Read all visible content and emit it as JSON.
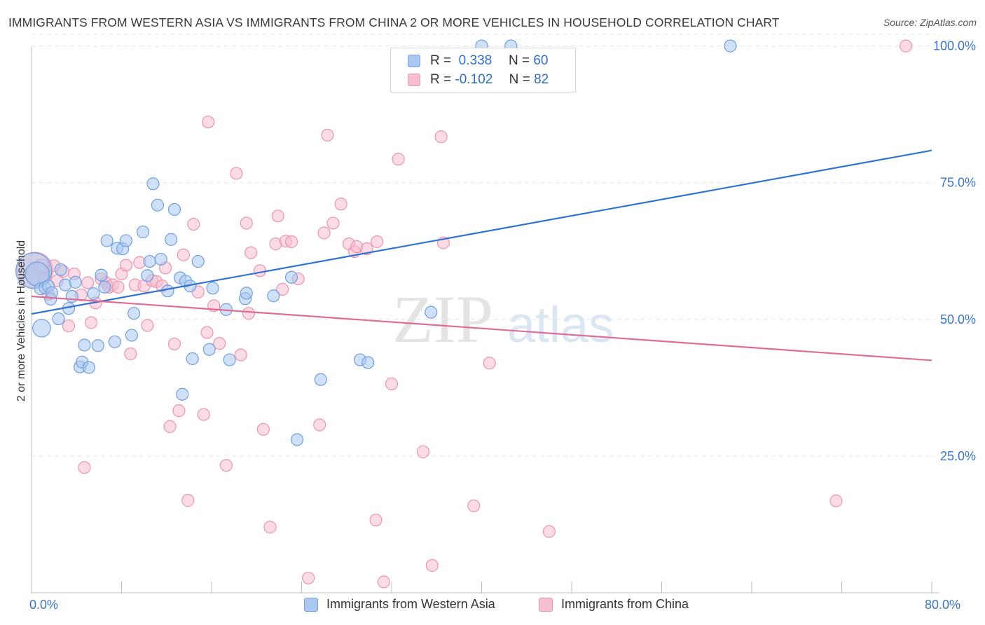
{
  "title": "IMMIGRANTS FROM WESTERN ASIA VS IMMIGRANTS FROM CHINA 2 OR MORE VEHICLES IN HOUSEHOLD CORRELATION CHART",
  "source": "Source: ZipAtlas.com",
  "watermark": {
    "zip": "ZIP",
    "atlas": "atlas"
  },
  "legend": {
    "r_label": "R =",
    "n_label": "N =",
    "series1": {
      "r": "0.338",
      "n": "60"
    },
    "series2": {
      "r": "-0.102",
      "n": "82"
    }
  },
  "colors": {
    "blue_fill": "#a9c7ef",
    "blue_stroke": "#6f9fe0",
    "blue_line": "#2f72d0",
    "pink_fill": "#f7bdd0",
    "pink_stroke": "#ea94b2",
    "pink_line": "#e06b96",
    "tick_text": "#3a74c9",
    "grid": "#e3e3e3"
  },
  "chart_data": {
    "type": "scatter",
    "title": "IMMIGRANTS FROM WESTERN ASIA VS IMMIGRANTS FROM CHINA 2 OR MORE VEHICLES IN HOUSEHOLD CORRELATION CHART",
    "xlabel": "",
    "ylabel": "2 or more Vehicles in Household",
    "xlim": [
      0,
      80
    ],
    "ylim": [
      0,
      102
    ],
    "x_tick_labels": [
      "0.0%",
      "80.0%"
    ],
    "y_ticks": [
      25,
      50,
      75,
      100
    ],
    "y_tick_labels": [
      "25.0%",
      "50.0%",
      "75.0%",
      "100.0%"
    ],
    "grid": true,
    "legend_position": "top-center",
    "series": [
      {
        "name": "Immigrants from Western Asia",
        "r": 0.338,
        "n": 60,
        "trend": {
          "x": [
            0,
            80
          ],
          "y": [
            51.0,
            80.9
          ]
        },
        "points": [
          {
            "x": 0.2,
            "y": 58.9,
            "s": 3
          },
          {
            "x": 0.5,
            "y": 58.3,
            "s": 2
          },
          {
            "x": 0.8,
            "y": 55.6,
            "s": 1
          },
          {
            "x": 1.2,
            "y": 55.8,
            "s": 1
          },
          {
            "x": 0.9,
            "y": 48.4,
            "s": 1.5
          },
          {
            "x": 1.5,
            "y": 56.1,
            "s": 1
          },
          {
            "x": 1.7,
            "y": 53.7,
            "s": 1
          },
          {
            "x": 1.8,
            "y": 54.9,
            "s": 1
          },
          {
            "x": 2.4,
            "y": 50.1,
            "s": 1
          },
          {
            "x": 2.6,
            "y": 59.1,
            "s": 1
          },
          {
            "x": 3.0,
            "y": 56.3,
            "s": 1
          },
          {
            "x": 3.3,
            "y": 52.0,
            "s": 1
          },
          {
            "x": 3.6,
            "y": 54.2,
            "s": 1
          },
          {
            "x": 3.9,
            "y": 56.8,
            "s": 1
          },
          {
            "x": 4.3,
            "y": 41.3,
            "s": 1
          },
          {
            "x": 4.5,
            "y": 42.2,
            "s": 1
          },
          {
            "x": 4.7,
            "y": 45.3,
            "s": 1
          },
          {
            "x": 5.1,
            "y": 41.2,
            "s": 1
          },
          {
            "x": 5.5,
            "y": 54.7,
            "s": 1
          },
          {
            "x": 5.9,
            "y": 45.2,
            "s": 1
          },
          {
            "x": 6.2,
            "y": 58.1,
            "s": 1
          },
          {
            "x": 6.5,
            "y": 55.9,
            "s": 1
          },
          {
            "x": 6.7,
            "y": 64.4,
            "s": 1
          },
          {
            "x": 7.4,
            "y": 45.9,
            "s": 1
          },
          {
            "x": 7.6,
            "y": 63.0,
            "s": 1
          },
          {
            "x": 8.1,
            "y": 62.9,
            "s": 1
          },
          {
            "x": 8.4,
            "y": 64.4,
            "s": 1
          },
          {
            "x": 8.9,
            "y": 47.1,
            "s": 1
          },
          {
            "x": 9.1,
            "y": 51.1,
            "s": 1
          },
          {
            "x": 9.9,
            "y": 66.0,
            "s": 1
          },
          {
            "x": 10.3,
            "y": 58.0,
            "s": 1
          },
          {
            "x": 10.5,
            "y": 60.6,
            "s": 1
          },
          {
            "x": 10.8,
            "y": 74.8,
            "s": 1
          },
          {
            "x": 11.2,
            "y": 70.9,
            "s": 1
          },
          {
            "x": 11.5,
            "y": 61.0,
            "s": 1
          },
          {
            "x": 12.1,
            "y": 55.2,
            "s": 1
          },
          {
            "x": 12.4,
            "y": 64.6,
            "s": 1
          },
          {
            "x": 12.7,
            "y": 70.1,
            "s": 1
          },
          {
            "x": 13.2,
            "y": 57.6,
            "s": 1
          },
          {
            "x": 13.4,
            "y": 36.3,
            "s": 1
          },
          {
            "x": 13.7,
            "y": 57.0,
            "s": 1
          },
          {
            "x": 14.1,
            "y": 56.1,
            "s": 1
          },
          {
            "x": 14.3,
            "y": 42.8,
            "s": 1
          },
          {
            "x": 14.8,
            "y": 60.6,
            "s": 1
          },
          {
            "x": 15.8,
            "y": 44.5,
            "s": 1
          },
          {
            "x": 16.1,
            "y": 55.7,
            "s": 1
          },
          {
            "x": 17.3,
            "y": 51.8,
            "s": 1
          },
          {
            "x": 17.6,
            "y": 42.6,
            "s": 1
          },
          {
            "x": 19.0,
            "y": 53.8,
            "s": 1
          },
          {
            "x": 19.1,
            "y": 54.8,
            "s": 1
          },
          {
            "x": 21.5,
            "y": 54.3,
            "s": 1
          },
          {
            "x": 23.1,
            "y": 57.7,
            "s": 1
          },
          {
            "x": 23.6,
            "y": 28.0,
            "s": 1
          },
          {
            "x": 25.7,
            "y": 39.0,
            "s": 1
          },
          {
            "x": 29.2,
            "y": 42.6,
            "s": 1
          },
          {
            "x": 29.9,
            "y": 42.1,
            "s": 1
          },
          {
            "x": 35.5,
            "y": 51.3,
            "s": 1
          },
          {
            "x": 42.6,
            "y": 100.0,
            "s": 1
          },
          {
            "x": 62.1,
            "y": 100.0,
            "s": 1
          },
          {
            "x": 40.0,
            "y": 100.0,
            "s": 1
          }
        ]
      },
      {
        "name": "Immigrants from China",
        "r": -0.102,
        "n": 82,
        "trend": {
          "x": [
            0,
            80
          ],
          "y": [
            54.2,
            42.5
          ]
        },
        "points": [
          {
            "x": 0.3,
            "y": 59.0,
            "s": 3
          },
          {
            "x": 0.6,
            "y": 58.2,
            "s": 2
          },
          {
            "x": 0.9,
            "y": 59.6,
            "s": 1.3
          },
          {
            "x": 1.1,
            "y": 57.4,
            "s": 1
          },
          {
            "x": 1.5,
            "y": 54.6,
            "s": 1
          },
          {
            "x": 2.0,
            "y": 59.8,
            "s": 1
          },
          {
            "x": 2.3,
            "y": 57.1,
            "s": 1
          },
          {
            "x": 2.8,
            "y": 58.8,
            "s": 1
          },
          {
            "x": 3.3,
            "y": 48.8,
            "s": 1
          },
          {
            "x": 3.8,
            "y": 58.3,
            "s": 1
          },
          {
            "x": 4.4,
            "y": 54.5,
            "s": 1
          },
          {
            "x": 4.7,
            "y": 22.9,
            "s": 1
          },
          {
            "x": 5.0,
            "y": 56.7,
            "s": 1
          },
          {
            "x": 5.3,
            "y": 49.4,
            "s": 1
          },
          {
            "x": 5.7,
            "y": 53.0,
            "s": 1
          },
          {
            "x": 6.2,
            "y": 57.4,
            "s": 1
          },
          {
            "x": 6.6,
            "y": 56.7,
            "s": 1
          },
          {
            "x": 6.9,
            "y": 55.9,
            "s": 1
          },
          {
            "x": 7.2,
            "y": 56.3,
            "s": 1
          },
          {
            "x": 7.7,
            "y": 55.9,
            "s": 1
          },
          {
            "x": 8.0,
            "y": 58.3,
            "s": 1
          },
          {
            "x": 8.4,
            "y": 59.9,
            "s": 1
          },
          {
            "x": 8.8,
            "y": 43.7,
            "s": 1
          },
          {
            "x": 9.2,
            "y": 56.3,
            "s": 1
          },
          {
            "x": 9.6,
            "y": 60.4,
            "s": 1
          },
          {
            "x": 10.0,
            "y": 56.1,
            "s": 1
          },
          {
            "x": 10.3,
            "y": 48.9,
            "s": 1
          },
          {
            "x": 10.7,
            "y": 57.1,
            "s": 1
          },
          {
            "x": 11.1,
            "y": 56.9,
            "s": 1
          },
          {
            "x": 11.6,
            "y": 56.1,
            "s": 1
          },
          {
            "x": 11.9,
            "y": 59.4,
            "s": 1
          },
          {
            "x": 12.3,
            "y": 30.4,
            "s": 1
          },
          {
            "x": 12.7,
            "y": 45.5,
            "s": 1
          },
          {
            "x": 13.1,
            "y": 33.3,
            "s": 1
          },
          {
            "x": 13.5,
            "y": 61.8,
            "s": 1
          },
          {
            "x": 13.9,
            "y": 16.9,
            "s": 1
          },
          {
            "x": 14.4,
            "y": 67.4,
            "s": 1
          },
          {
            "x": 14.8,
            "y": 55.0,
            "s": 1
          },
          {
            "x": 15.3,
            "y": 32.6,
            "s": 1
          },
          {
            "x": 15.6,
            "y": 47.6,
            "s": 1
          },
          {
            "x": 15.7,
            "y": 86.1,
            "s": 1
          },
          {
            "x": 16.2,
            "y": 52.5,
            "s": 1
          },
          {
            "x": 16.7,
            "y": 45.6,
            "s": 1
          },
          {
            "x": 17.3,
            "y": 23.3,
            "s": 1
          },
          {
            "x": 18.2,
            "y": 76.7,
            "s": 1
          },
          {
            "x": 18.6,
            "y": 43.5,
            "s": 1
          },
          {
            "x": 19.1,
            "y": 67.6,
            "s": 1
          },
          {
            "x": 19.3,
            "y": 51.1,
            "s": 1
          },
          {
            "x": 19.5,
            "y": 62.2,
            "s": 1
          },
          {
            "x": 20.3,
            "y": 58.9,
            "s": 1
          },
          {
            "x": 20.6,
            "y": 29.9,
            "s": 1
          },
          {
            "x": 21.2,
            "y": 12.0,
            "s": 1
          },
          {
            "x": 21.7,
            "y": 63.8,
            "s": 1
          },
          {
            "x": 21.9,
            "y": 68.9,
            "s": 1
          },
          {
            "x": 22.3,
            "y": 55.5,
            "s": 1
          },
          {
            "x": 22.6,
            "y": 64.3,
            "s": 1
          },
          {
            "x": 23.1,
            "y": 64.2,
            "s": 1
          },
          {
            "x": 23.7,
            "y": 57.4,
            "s": 1
          },
          {
            "x": 24.6,
            "y": 2.7,
            "s": 1
          },
          {
            "x": 25.6,
            "y": 30.7,
            "s": 1
          },
          {
            "x": 26.0,
            "y": 65.8,
            "s": 1
          },
          {
            "x": 26.3,
            "y": 83.7,
            "s": 1
          },
          {
            "x": 26.8,
            "y": 67.6,
            "s": 1
          },
          {
            "x": 27.5,
            "y": 71.1,
            "s": 1
          },
          {
            "x": 28.2,
            "y": 63.8,
            "s": 1
          },
          {
            "x": 28.7,
            "y": 62.4,
            "s": 1
          },
          {
            "x": 28.9,
            "y": 63.3,
            "s": 1
          },
          {
            "x": 29.8,
            "y": 62.9,
            "s": 1
          },
          {
            "x": 30.6,
            "y": 13.3,
            "s": 1
          },
          {
            "x": 30.7,
            "y": 64.2,
            "s": 1
          },
          {
            "x": 31.3,
            "y": 2.0,
            "s": 1
          },
          {
            "x": 32.0,
            "y": 38.2,
            "s": 1
          },
          {
            "x": 32.6,
            "y": 79.3,
            "s": 1
          },
          {
            "x": 34.8,
            "y": 25.8,
            "s": 1
          },
          {
            "x": 35.6,
            "y": 5.0,
            "s": 1
          },
          {
            "x": 36.4,
            "y": 83.4,
            "s": 1
          },
          {
            "x": 36.6,
            "y": 64.0,
            "s": 1
          },
          {
            "x": 39.3,
            "y": 15.9,
            "s": 1
          },
          {
            "x": 40.7,
            "y": 42.0,
            "s": 1
          },
          {
            "x": 46.0,
            "y": 11.2,
            "s": 1
          },
          {
            "x": 71.5,
            "y": 16.8,
            "s": 1
          },
          {
            "x": 77.7,
            "y": 100.0,
            "s": 1
          }
        ]
      }
    ]
  },
  "bottom_legend": {
    "series1": "Immigrants from Western Asia",
    "series2": "Immigrants from China"
  },
  "x_axis": {
    "min_label": "0.0%",
    "max_label": "80.0%"
  }
}
